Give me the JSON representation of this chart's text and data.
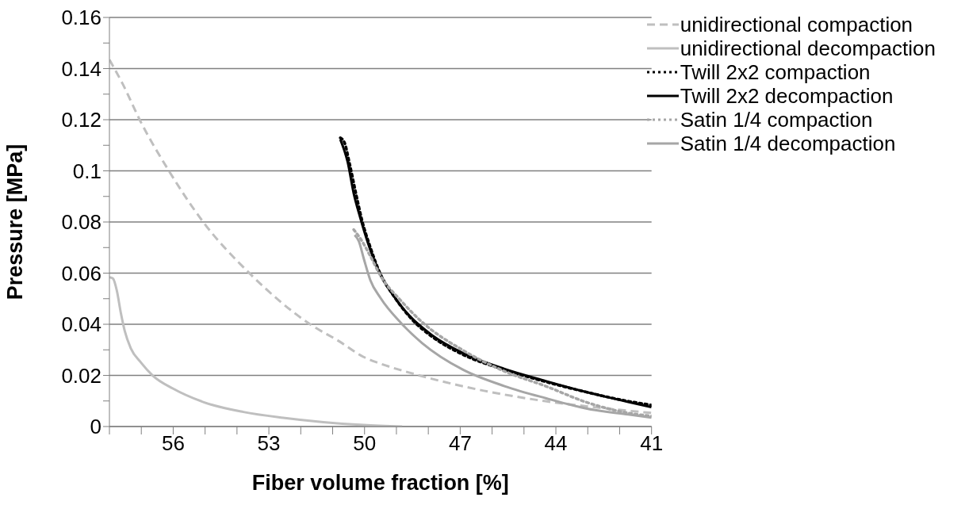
{
  "chart_data": {
    "type": "line",
    "xlabel": "Fiber volume fraction [%]",
    "ylabel": "Pressure [MPa]",
    "xlim": [
      58,
      41
    ],
    "xticks": [
      {
        "value": 58,
        "label": null
      },
      {
        "value": 57,
        "label": null
      },
      56,
      {
        "value": 55,
        "label": null
      },
      {
        "value": 54,
        "label": null
      },
      53,
      {
        "value": 52,
        "label": null
      },
      {
        "value": 51,
        "label": null
      },
      50,
      {
        "value": 49,
        "label": null
      },
      {
        "value": 48,
        "label": null
      },
      47,
      {
        "value": 46,
        "label": null
      },
      {
        "value": 45,
        "label": null
      },
      44,
      {
        "value": 43,
        "label": null
      },
      {
        "value": 42,
        "label": null
      },
      41
    ],
    "ylim": [
      0,
      0.16
    ],
    "yticks": [
      0,
      {
        "value": 0.01,
        "label": null
      },
      0.02,
      {
        "value": 0.03,
        "label": null
      },
      0.04,
      {
        "value": 0.05,
        "label": null
      },
      0.06,
      {
        "value": 0.07,
        "label": null
      },
      0.08,
      {
        "value": 0.09,
        "label": null
      },
      0.1,
      {
        "value": 0.11,
        "label": null
      },
      0.12,
      {
        "value": 0.13,
        "label": null
      },
      0.14,
      {
        "value": 0.15,
        "label": null
      },
      0.16
    ],
    "grid": "y",
    "legend": "top right",
    "marker": "none",
    "series": [
      {
        "name": "unidirectional compaction",
        "color": "#bfbfbf",
        "line_style": "dashed",
        "x": [
          58,
          57.58,
          57.04,
          56.13,
          55.06,
          53.62,
          51.67,
          50.79,
          50.03,
          49.5,
          48.4,
          46.26,
          44.32,
          42.37,
          41
        ],
        "values": [
          0.1435,
          0.1339,
          0.1197,
          0.0999,
          0.08,
          0.0601,
          0.0397,
          0.0333,
          0.0272,
          0.0246,
          0.0204,
          0.014,
          0.0099,
          0.007,
          0.0053
        ]
      },
      {
        "name": "unidirectional decompaction",
        "color": "#bfbfbf",
        "line_style": "solid",
        "x": [
          58,
          57.89,
          57.77,
          57.64,
          57.52,
          57.33,
          57.01,
          56.64,
          56.0,
          55.06,
          53.8,
          52.55,
          51.29,
          50.03,
          48.82
        ],
        "values": [
          0.0584,
          0.0579,
          0.0533,
          0.0443,
          0.0374,
          0.0306,
          0.025,
          0.0199,
          0.0148,
          0.0096,
          0.0057,
          0.0034,
          0.0017,
          0.0006,
          0
        ]
      },
      {
        "name": "Twill 2x2 compaction",
        "color": "#000000",
        "line_style": "dotted",
        "x": [
          50.76,
          50.63,
          50.47,
          50.27,
          50.08,
          49.82,
          49.5,
          49.11,
          48.53,
          47.88,
          46.91,
          45.61,
          44.32,
          43.02,
          41.73,
          41
        ],
        "values": [
          0.1129,
          0.1111,
          0.1029,
          0.0912,
          0.0807,
          0.0702,
          0.0596,
          0.0515,
          0.0421,
          0.0351,
          0.0281,
          0.0222,
          0.0175,
          0.0134,
          0.0099,
          0.0084
        ]
      },
      {
        "name": "Twill 2x2 decompaction",
        "color": "#000000",
        "line_style": "solid",
        "x": [
          50.76,
          50.53,
          50.34,
          50.14,
          49.88,
          49.56,
          49.17,
          48.59,
          47.88,
          46.91,
          45.61,
          44.32,
          43.02,
          41.73,
          41
        ],
        "values": [
          0.1123,
          0.1035,
          0.0912,
          0.0819,
          0.0713,
          0.0608,
          0.0526,
          0.0433,
          0.0357,
          0.0287,
          0.0225,
          0.0178,
          0.0134,
          0.0096,
          0.0076
        ]
      },
      {
        "name": "Satin 1/4 compaction",
        "color": "#a6a6a6",
        "line_style": "dotted",
        "x": [
          50.34,
          50.14,
          49.82,
          49.5,
          48.85,
          48.2,
          46.91,
          45.61,
          44.32,
          43.02,
          41.73,
          41
        ],
        "values": [
          0.077,
          0.0737,
          0.0667,
          0.059,
          0.0491,
          0.0409,
          0.0298,
          0.0216,
          0.0158,
          0.0094,
          0.0053,
          0.0041
        ]
      },
      {
        "name": "Satin 1/4 decompaction",
        "color": "#a6a6a6",
        "line_style": "solid",
        "x": [
          50.31,
          50.18,
          50.02,
          49.82,
          49.5,
          48.85,
          48.2,
          46.91,
          45.61,
          44.32,
          43.02,
          41.73,
          41
        ],
        "values": [
          0.0749,
          0.0725,
          0.0655,
          0.0573,
          0.0503,
          0.0404,
          0.0327,
          0.0222,
          0.0158,
          0.0111,
          0.007,
          0.0047,
          0.0035
        ]
      }
    ]
  }
}
